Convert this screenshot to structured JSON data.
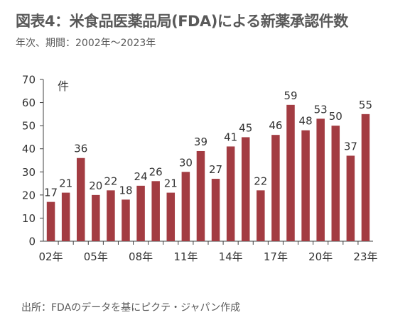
{
  "title": "図表4：米食品医薬品局(FDA)による新薬承認件数",
  "subtitle": "年次、期間：2002年～2023年",
  "source": "出所：FDAのデータを基にピクテ・ジャパン作成",
  "colors": {
    "bar": "#a33c42",
    "axis": "#404040",
    "text": "#333333"
  },
  "chart_data": {
    "type": "bar",
    "unit_label": "件",
    "categories": [
      "2002",
      "2003",
      "2004",
      "2005",
      "2006",
      "2007",
      "2008",
      "2009",
      "2010",
      "2011",
      "2012",
      "2013",
      "2014",
      "2015",
      "2016",
      "2017",
      "2018",
      "2019",
      "2020",
      "2021",
      "2022",
      "2023"
    ],
    "x_tick_labels": [
      "02年",
      "05年",
      "08年",
      "11年",
      "14年",
      "17年",
      "20年",
      "23年"
    ],
    "x_tick_every": 3,
    "values": [
      17,
      21,
      36,
      20,
      22,
      18,
      24,
      26,
      21,
      30,
      39,
      27,
      41,
      45,
      22,
      46,
      59,
      48,
      53,
      50,
      37,
      55
    ],
    "ylim": [
      0,
      70
    ],
    "yticks": [
      0,
      10,
      20,
      30,
      40,
      50,
      60,
      70
    ],
    "grid": false,
    "legend": "none"
  }
}
